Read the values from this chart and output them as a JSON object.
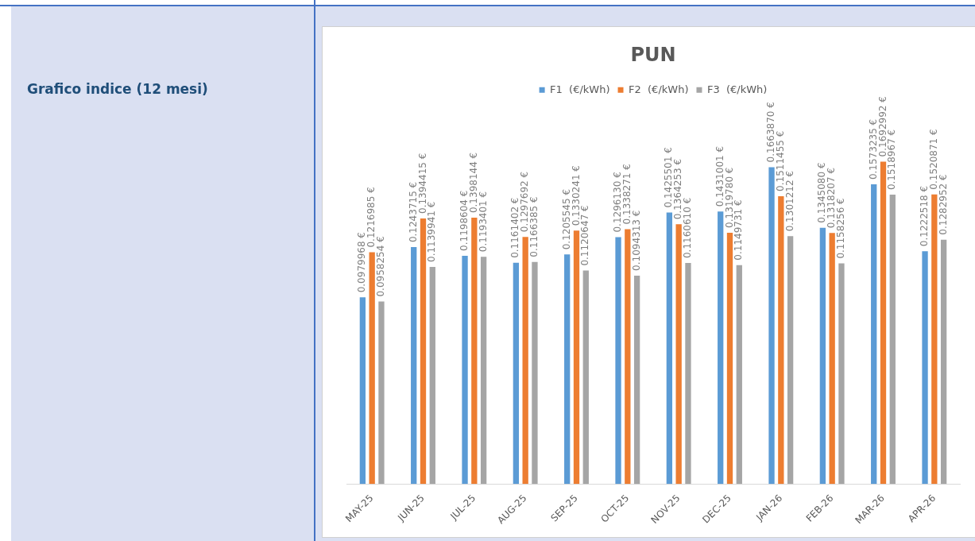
{
  "chart_data": {
    "type": "bar",
    "title": "PUN",
    "annotations": [
      "Grafico indice (12 mesi)"
    ],
    "categories": [
      "MAY-25",
      "JUN-25",
      "JUL-25",
      "AUG-25",
      "SEP-25",
      "OCT-25",
      "NOV-25",
      "DEC-25",
      "JAN-26",
      "FEB-26",
      "MAR-26",
      "APR-26"
    ],
    "series": [
      {
        "name": "F1  (€/kWh)",
        "color": "#5b9bd5",
        "values": [
          0.0979968,
          0.1243715,
          0.1198604,
          0.1161402,
          0.1205545,
          0.129613,
          0.1425501,
          0.1431001,
          0.166387,
          0.134508,
          0.1573235,
          0.1222518
        ],
        "value_labels": [
          "0.0979968 €",
          "0.1243715 €",
          "0.1198604 €",
          "0.1161402 €",
          "0.1205545 €",
          "0.1296130 €",
          "0.1425501 €",
          "0.1431001 €",
          "0.1663870 €",
          "0.1345080 €",
          "0.1573235 €",
          "0.1222518 €"
        ]
      },
      {
        "name": "F2  (€/kWh)",
        "color": "#ed7d31",
        "values": [
          0.1216985,
          0.1394415,
          0.1398144,
          0.1297692,
          0.1330241,
          0.1338271,
          0.1364253,
          0.131978,
          0.1511455,
          0.1318207,
          0.1692992,
          0.1520871
        ],
        "value_labels": [
          "0.1216985 €",
          "0.1394415 €",
          "0.1398144 €",
          "0.1297692 €",
          "0.1330241 €",
          "0.1338271 €",
          "0.1364253 €",
          "0.1319780 €",
          "0.1511455 €",
          "0.1318207 €",
          "0.1692992 €",
          "0.1520871 €"
        ]
      },
      {
        "name": "F3  (€/kWh)",
        "color": "#a5a5a5",
        "values": [
          0.0958254,
          0.1139941,
          0.1193401,
          0.1166385,
          0.1120647,
          0.1094313,
          0.116061,
          0.1149731,
          0.1301212,
          0.1158256,
          0.1518967,
          0.1282952
        ],
        "value_labels": [
          "0.0958254 €",
          "0.1139941 €",
          "0.1193401 €",
          "0.1166385 €",
          "0.1120647 €",
          "0.1094313 €",
          "0.1160610 €",
          "0.1149731 €",
          "0.1301212 €",
          "0.1158256 €",
          "0.1518967 €",
          "0.1282952 €"
        ]
      }
    ],
    "grid": false,
    "legend": "top"
  }
}
